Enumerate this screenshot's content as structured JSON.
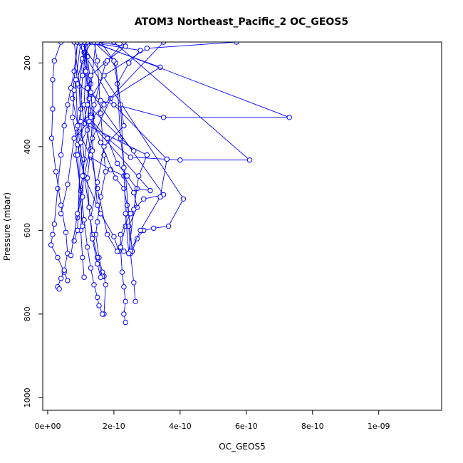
{
  "chart_data": {
    "type": "line",
    "title": "ATOM3 Northeast_Pacific_2 OC_GEOS5",
    "xlabel": "OC_GEOS5",
    "ylabel": "Pressure (mbar)",
    "xlim": [
      -1.5e-11,
      1.19e-09
    ],
    "ylim": [
      1030,
      150
    ],
    "y_inverted": true,
    "x_ticks": [
      {
        "value": 0,
        "label": "0e+00"
      },
      {
        "value": 2e-10,
        "label": "2e-10"
      },
      {
        "value": 4e-10,
        "label": "4e-10"
      },
      {
        "value": 6e-10,
        "label": "6e-10"
      },
      {
        "value": 8e-10,
        "label": "8e-10"
      },
      {
        "value": 1e-09,
        "label": "1e-09"
      }
    ],
    "y_ticks": [
      {
        "value": 200,
        "label": "200"
      },
      {
        "value": 400,
        "label": "400"
      },
      {
        "value": 600,
        "label": "600"
      },
      {
        "value": 800,
        "label": "800"
      },
      {
        "value": 1000,
        "label": "1000"
      }
    ],
    "grid": false,
    "legend": "none",
    "color": "#0000ff",
    "marker": "open-circle",
    "profiles": [
      {
        "x": [
          1.4e-10,
          1.5e-10,
          1.6e-10,
          1.7e-10,
          1.75e-10,
          1.6e-10,
          1.5e-10,
          1.45e-10,
          1.55e-10,
          1.65e-10,
          1.7e-10,
          1.75e-10,
          1.7e-10
        ],
        "y": [
          150,
          195,
          320,
          420,
          460,
          520,
          580,
          610,
          665,
          700,
          710,
          730,
          800
        ]
      },
      {
        "x": [
          1.2e-10,
          1.1e-10,
          1.05e-10,
          1e-10,
          9e-11,
          8.5e-11,
          1e-10,
          1.1e-10,
          1.2e-10,
          1.3e-10,
          1.4e-10,
          1.5e-10,
          1.55e-10,
          1.65e-10
        ],
        "y": [
          150,
          175,
          230,
          310,
          365,
          420,
          505,
          575,
          640,
          690,
          730,
          760,
          780,
          800
        ]
      },
      {
        "x": [
          9e-11,
          8e-11,
          7e-11,
          6e-11,
          5e-11,
          4e-11,
          3e-11,
          2e-11,
          1.5e-11,
          1e-11,
          3e-11,
          5e-11,
          6e-11
        ],
        "y": [
          150,
          220,
          260,
          300,
          350,
          420,
          500,
          585,
          610,
          635,
          665,
          700,
          720
        ]
      },
      {
        "x": [
          4e-11,
          2e-11,
          1.5e-11,
          1.5e-11,
          1.2e-11,
          2.5e-11,
          4e-11,
          5.5e-11,
          6e-11,
          5e-11,
          4e-11,
          3e-11,
          3.5e-11
        ],
        "y": [
          150,
          195,
          240,
          310,
          380,
          460,
          540,
          605,
          655,
          695,
          715,
          735,
          740
        ]
      },
      {
        "x": [
          9e-11,
          7.5e-11,
          9.5e-11,
          1.3e-10,
          1.9e-10,
          2.3e-10,
          2.6e-10,
          2.7e-10,
          2.45e-10,
          2.5e-10,
          2.6e-10,
          2.65e-10
        ],
        "y": [
          150,
          285,
          365,
          425,
          455,
          470,
          510,
          545,
          590,
          655,
          725,
          770
        ]
      },
      {
        "x": [
          1.1e-10,
          1.3e-10,
          1.6e-10,
          2.05e-10,
          2.3e-10,
          2.4e-10,
          2.35e-10,
          2.2e-10,
          2.25e-10,
          2.3e-10,
          2.35e-10,
          2.3e-10,
          2.35e-10
        ],
        "y": [
          150,
          325,
          390,
          475,
          500,
          540,
          590,
          640,
          700,
          735,
          770,
          800,
          820
        ]
      },
      {
        "x": [
          1.3e-10,
          1.05e-10,
          8e-11,
          7.5e-11,
          9e-11,
          1.1e-10,
          1.25e-10,
          1.35e-10,
          1.5e-10,
          1.65e-10
        ],
        "y": [
          150,
          195,
          265,
          330,
          395,
          470,
          545,
          610,
          665,
          710
        ]
      },
      {
        "x": [
          1.1e-10,
          1.2e-10,
          1.3e-10,
          1.35e-10,
          1.3e-10,
          1.2e-10,
          1.25e-10,
          1.35e-10,
          1.5e-10,
          1.6e-10
        ],
        "y": [
          150,
          185,
          250,
          330,
          405,
          475,
          545,
          620,
          680,
          712
        ]
      },
      {
        "x": [
          1.15e-10,
          1.05e-10,
          9.5e-11,
          1e-10,
          1.1e-10,
          1.05e-10,
          1e-10,
          1.05e-10,
          1.1e-10
        ],
        "y": [
          150,
          190,
          255,
          340,
          430,
          520,
          600,
          665,
          712
        ]
      },
      {
        "x": [
          1.2e-10,
          2.8e-10,
          2.45e-10,
          2.1e-10,
          2.2e-10,
          2.35e-10,
          2.45e-10,
          2.55e-10
        ],
        "y": [
          150,
          170,
          200,
          250,
          380,
          470,
          560,
          650
        ]
      },
      {
        "x": [
          1.3e-10,
          3.4e-10,
          1.9e-10,
          1.35e-10,
          1.1e-10,
          9e-11
        ],
        "y": [
          150,
          210,
          285,
          380,
          470,
          570
        ]
      },
      {
        "x": [
          1.35e-10,
          7.3e-10,
          3.5e-10,
          1.6e-10,
          9e-11
        ],
        "y": [
          150,
          330,
          330,
          290,
          250
        ]
      },
      {
        "x": [
          2e-10,
          6.1e-10,
          4e-10,
          2.5e-10,
          1.8e-10,
          1.3e-10
        ],
        "y": [
          150,
          432,
          432,
          425,
          380,
          335
        ]
      },
      {
        "x": [
          3.5e-10,
          1.7e-10,
          8e-11,
          6e-11,
          4e-11
        ],
        "y": [
          150,
          300,
          380,
          490,
          560
        ]
      },
      {
        "x": [
          1.45e-10,
          1.2e-10,
          3.1e-10,
          2.7e-10,
          2.4e-10,
          2.1e-10,
          1.8e-10
        ],
        "y": [
          150,
          335,
          505,
          500,
          470,
          440,
          380
        ]
      },
      {
        "x": [
          1.1e-10,
          1.3e-10,
          3.5e-10,
          2.9e-10,
          2.5e-10,
          2.2e-10,
          2.2e-10,
          2.3e-10
        ],
        "y": [
          150,
          270,
          515,
          525,
          560,
          610,
          640,
          650
        ]
      },
      {
        "x": [
          1e-10,
          4.1e-10,
          3.65e-10,
          3.2e-10,
          2.9e-10,
          2.7e-10,
          2.55e-10
        ],
        "y": [
          150,
          525,
          590,
          595,
          600,
          620,
          650
        ]
      },
      {
        "x": [
          8e-11,
          1.1e-10,
          3e-10,
          2.75e-10,
          2.6e-10,
          2.45e-10
        ],
        "y": [
          150,
          345,
          420,
          470,
          550,
          655
        ]
      },
      {
        "x": [
          9e-11,
          2e-10,
          3.6e-10,
          3.4e-10,
          2.8e-10,
          2.5e-10
        ],
        "y": [
          150,
          300,
          430,
          520,
          600,
          650
        ]
      },
      {
        "x": [
          1.6e-10,
          2.05e-10,
          2.2e-10,
          2.3e-10,
          2.35e-10,
          2.45e-10
        ],
        "y": [
          150,
          200,
          300,
          450,
          560,
          655
        ]
      },
      {
        "x": [
          5.7e-10,
          3e-10,
          1.7e-10,
          1.2e-10,
          9e-11,
          1.05e-10
        ],
        "y": [
          150,
          165,
          230,
          300,
          420,
          590
        ]
      },
      {
        "x": [
          1e-10,
          8.5e-11,
          9e-11,
          1.1e-10,
          1.6e-10,
          2e-10,
          2.15e-10
        ],
        "y": [
          150,
          240,
          350,
          470,
          560,
          615,
          650
        ]
      },
      {
        "x": [
          1.2e-10,
          1.15e-10,
          1.1e-10,
          1.3e-10,
          1.5e-10,
          1.8e-10,
          2.1e-10
        ],
        "y": [
          150,
          215,
          300,
          420,
          500,
          610,
          650
        ]
      },
      {
        "x": [
          1.1e-10,
          1.25e-10,
          1.3e-10,
          1.2e-10,
          1e-10,
          9e-11,
          8e-11
        ],
        "y": [
          150,
          285,
          330,
          360,
          390,
          600,
          625
        ]
      },
      {
        "x": [
          1e-10,
          1.15e-10,
          1.2e-10,
          1.25e-10,
          1.05e-10,
          9e-11,
          7e-11
        ],
        "y": [
          150,
          220,
          260,
          340,
          470,
          560,
          660
        ]
      },
      {
        "x": [
          1.4e-10,
          2e-10,
          2.3e-10,
          1.7e-10,
          1.5e-10,
          1.3e-10
        ],
        "y": [
          150,
          195,
          350,
          400,
          485,
          570
        ]
      },
      {
        "x": [
          2.3e-10,
          1.75e-10,
          1.4e-10,
          1.35e-10,
          1.5e-10
        ],
        "y": [
          150,
          200,
          300,
          410,
          540
        ]
      },
      {
        "x": [
          1.5e-10,
          2.35e-10,
          1.8e-10,
          1.3e-10,
          1.2e-10,
          2.6e-10
        ],
        "y": [
          150,
          160,
          195,
          230,
          300,
          410
        ]
      }
    ]
  }
}
